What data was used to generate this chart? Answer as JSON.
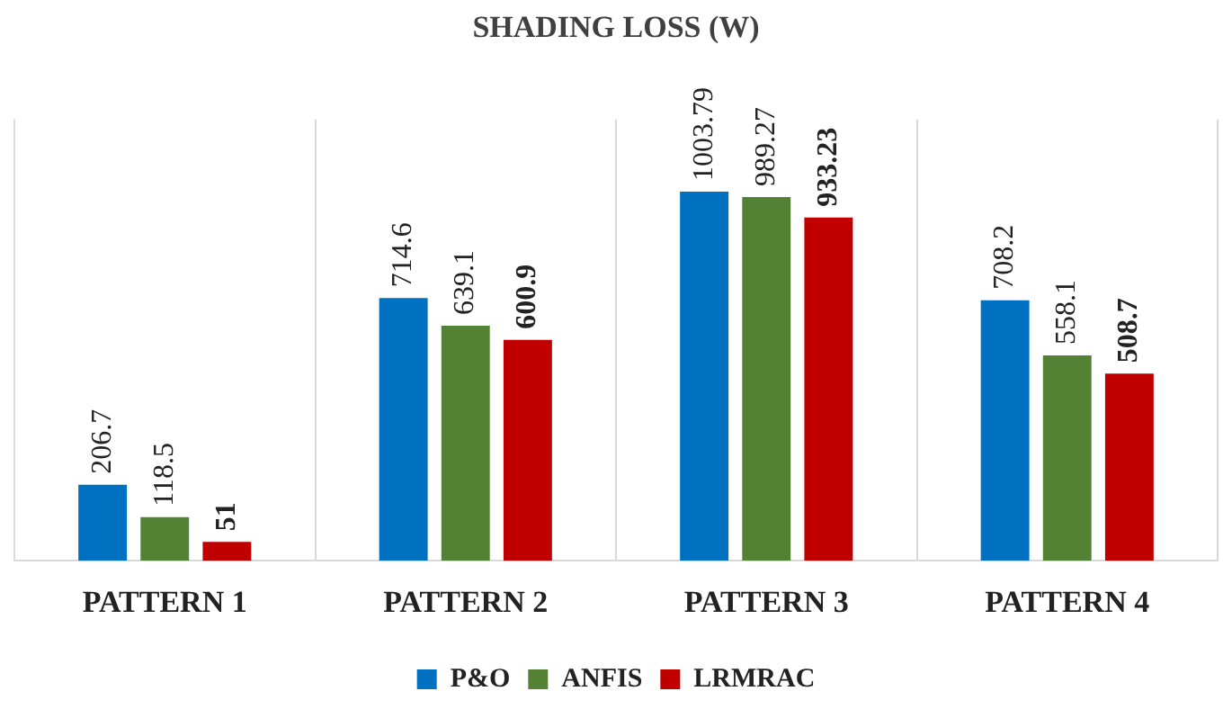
{
  "chart_data": {
    "type": "bar",
    "title": "SHADING LOSS (W)",
    "categories": [
      "PATTERN 1",
      "PATTERN 2",
      "PATTERN 3",
      "PATTERN 4"
    ],
    "series": [
      {
        "name": "P&O",
        "color": "#0070c0",
        "values": [
          206.7,
          714.6,
          1003.79,
          708.2
        ]
      },
      {
        "name": "ANFIS",
        "color": "#548235",
        "values": [
          118.5,
          639.1,
          989.27,
          558.1
        ]
      },
      {
        "name": "LRMRAC",
        "color": "#c00000",
        "values": [
          51,
          600.9,
          933.23,
          508.7
        ]
      }
    ],
    "data_labels": true,
    "grid": "x",
    "legend": "bottom"
  }
}
